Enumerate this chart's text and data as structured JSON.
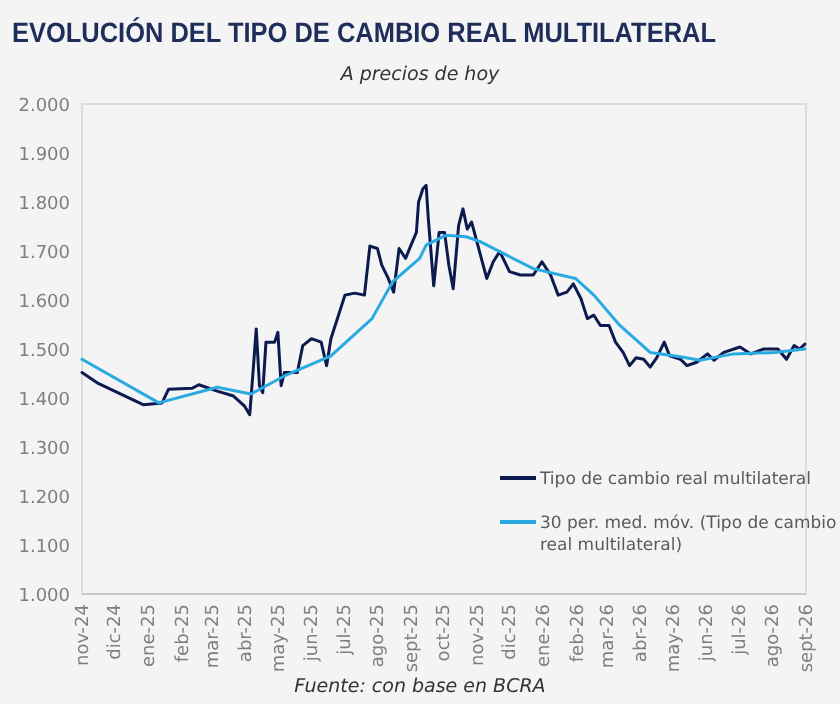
{
  "chart_data": {
    "type": "line",
    "title": "EVOLUCIÓN DEL TIPO DE CAMBIO REAL MULTILATERAL",
    "subtitle": "A precios de hoy",
    "annotations": [
      "Fuente: con base en BCRA"
    ],
    "xlim": [
      "2024-11-01",
      "2026-09-01"
    ],
    "xticks": [
      {
        "value": "2024-11-01",
        "label": "nov-24"
      },
      {
        "value": "2024-12-01",
        "label": "dic-24"
      },
      {
        "value": "2025-01-01",
        "label": "ene-25"
      },
      {
        "value": "2025-02-01",
        "label": "feb-25"
      },
      {
        "value": "2025-03-01",
        "label": "mar-25"
      },
      {
        "value": "2025-04-01",
        "label": "abr-25"
      },
      {
        "value": "2025-05-01",
        "label": "may-25"
      },
      {
        "value": "2025-06-01",
        "label": "jun-25"
      },
      {
        "value": "2025-07-01",
        "label": "jul-25"
      },
      {
        "value": "2025-08-01",
        "label": "ago-25"
      },
      {
        "value": "2025-09-01",
        "label": "sept-25"
      },
      {
        "value": "2025-10-01",
        "label": "oct-25"
      },
      {
        "value": "2025-11-01",
        "label": "nov-25"
      },
      {
        "value": "2025-12-01",
        "label": "dic-25"
      },
      {
        "value": "2026-01-01",
        "label": "ene-26"
      },
      {
        "value": "2026-02-01",
        "label": "feb-26"
      },
      {
        "value": "2026-03-01",
        "label": "mar-26"
      },
      {
        "value": "2026-04-01",
        "label": "abr-26"
      },
      {
        "value": "2026-05-01",
        "label": "may-26"
      },
      {
        "value": "2026-06-01",
        "label": "jun-26"
      },
      {
        "value": "2026-07-01",
        "label": "jul-26"
      },
      {
        "value": "2026-08-01",
        "label": "ago-26"
      },
      {
        "value": "2026-09-01",
        "label": "sept-26"
      }
    ],
    "ylim": [
      1000,
      2000
    ],
    "yticks": [
      {
        "value": 1000,
        "label": "1.000"
      },
      {
        "value": 1100,
        "label": "1.100"
      },
      {
        "value": 1200,
        "label": "1.200"
      },
      {
        "value": 1300,
        "label": "1.300"
      },
      {
        "value": 1400,
        "label": "1.400"
      },
      {
        "value": 1500,
        "label": "1.500"
      },
      {
        "value": 1600,
        "label": "1.600"
      },
      {
        "value": 1700,
        "label": "1.700"
      },
      {
        "value": 1800,
        "label": "1.800"
      },
      {
        "value": 1900,
        "label": "1.900"
      },
      {
        "value": 2000,
        "label": "2.000"
      }
    ],
    "grid": false,
    "legend": "bottom right",
    "line_style": "solid",
    "marker": "none",
    "series": [
      {
        "name": "Tipo de cambio real multilateral",
        "color": "#0d1a4f",
        "x": [
          "2024-11-01",
          "2024-11-15",
          "2024-12-04",
          "2024-12-28",
          "2025-01-14",
          "2025-01-20",
          "2025-02-11",
          "2025-02-17",
          "2025-03-06",
          "2025-03-21",
          "2025-03-31",
          "2025-04-05",
          "2025-04-08",
          "2025-04-11",
          "2025-04-14",
          "2025-04-17",
          "2025-04-20",
          "2025-04-28",
          "2025-05-01",
          "2025-05-04",
          "2025-05-07",
          "2025-05-19",
          "2025-05-24",
          "2025-06-01",
          "2025-06-10",
          "2025-06-15",
          "2025-06-19",
          "2025-07-02",
          "2025-07-11",
          "2025-07-20",
          "2025-07-25",
          "2025-08-01",
          "2025-08-05",
          "2025-08-11",
          "2025-08-16",
          "2025-08-21",
          "2025-08-27",
          "2025-09-01",
          "2025-09-06",
          "2025-09-08",
          "2025-09-12",
          "2025-09-15",
          "2025-09-17",
          "2025-09-22",
          "2025-09-27",
          "2025-10-02",
          "2025-10-06",
          "2025-10-10",
          "2025-10-15",
          "2025-10-19",
          "2025-10-23",
          "2025-10-27",
          "2025-11-01",
          "2025-11-05",
          "2025-11-10",
          "2025-11-16",
          "2025-11-22",
          "2025-12-01",
          "2025-12-11",
          "2025-12-23",
          "2025-12-31",
          "2026-01-08",
          "2026-01-15",
          "2026-01-23",
          "2026-01-29",
          "2026-02-05",
          "2026-02-11",
          "2026-02-17",
          "2026-02-23",
          "2026-03-03",
          "2026-03-09",
          "2026-03-16",
          "2026-03-22",
          "2026-03-28",
          "2026-04-04",
          "2026-04-10",
          "2026-04-16",
          "2026-04-23",
          "2026-04-28",
          "2026-05-08",
          "2026-05-14",
          "2026-05-23",
          "2026-06-02",
          "2026-06-08",
          "2026-06-17",
          "2026-07-02",
          "2026-07-12",
          "2026-07-24",
          "2026-08-06",
          "2026-08-14",
          "2026-08-21",
          "2026-08-26",
          "2026-08-31"
        ],
        "values": [
          1452,
          1431,
          1411,
          1386,
          1390,
          1418,
          1420,
          1427,
          1414,
          1404,
          1384,
          1366,
          1452,
          1541,
          1425,
          1411,
          1514,
          1514,
          1534,
          1425,
          1452,
          1452,
          1507,
          1521,
          1514,
          1466,
          1521,
          1610,
          1614,
          1610,
          1710,
          1705,
          1671,
          1644,
          1616,
          1705,
          1685,
          1712,
          1738,
          1800,
          1827,
          1834,
          1766,
          1629,
          1738,
          1738,
          1671,
          1623,
          1752,
          1786,
          1745,
          1759,
          1718,
          1685,
          1644,
          1678,
          1699,
          1658,
          1651,
          1651,
          1678,
          1651,
          1610,
          1616,
          1633,
          1603,
          1562,
          1569,
          1548,
          1548,
          1514,
          1493,
          1466,
          1482,
          1479,
          1463,
          1482,
          1514,
          1486,
          1479,
          1466,
          1473,
          1490,
          1477,
          1493,
          1504,
          1490,
          1500,
          1500,
          1479,
          1507,
          1500,
          1510
        ]
      },
      {
        "name": "30 per. med. móv. (Tipo de cambio real multilateral)",
        "color": "#29abe2",
        "x": [
          "2024-11-01",
          "2025-01-11",
          "2025-03-06",
          "2025-04-06",
          "2025-05-07",
          "2025-06-19",
          "2025-07-27",
          "2025-08-15",
          "2025-09-09",
          "2025-09-15",
          "2025-10-03",
          "2025-10-22",
          "2025-11-04",
          "2025-11-28",
          "2025-12-23",
          "2026-01-31",
          "2026-02-17",
          "2026-03-13",
          "2026-04-10",
          "2026-05-08",
          "2026-05-26",
          "2026-06-26",
          "2026-08-03",
          "2026-08-31"
        ],
        "values": [
          1479,
          1390,
          1422,
          1408,
          1445,
          1486,
          1562,
          1637,
          1685,
          1712,
          1732,
          1729,
          1719,
          1692,
          1664,
          1644,
          1610,
          1548,
          1493,
          1484,
          1477,
          1490,
          1493,
          1500
        ]
      }
    ]
  }
}
